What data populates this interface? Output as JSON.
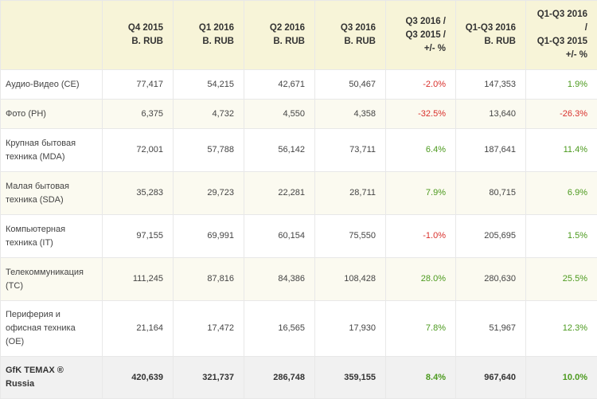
{
  "table": {
    "header": [
      [],
      [
        "Q4 2015",
        "B. RUB"
      ],
      [
        "Q1 2016",
        "B. RUB"
      ],
      [
        "Q2 2016",
        "B. RUB"
      ],
      [
        "Q3 2016",
        "B. RUB"
      ],
      [
        "Q3 2016 /",
        "Q3 2015 /",
        "+/- %"
      ],
      [
        "Q1-Q3 2016",
        "B. RUB"
      ],
      [
        "Q1-Q3 2016",
        "/",
        "Q1-Q3 2015",
        "+/- %"
      ]
    ],
    "rows": [
      [
        [
          "Аудио-Видео (CE)"
        ],
        "77,417",
        "54,215",
        "42,671",
        "50,467",
        "-2.0%",
        "147,353",
        "1.9%"
      ],
      [
        [
          "Фото (PH)"
        ],
        "6,375",
        "4,732",
        "4,550",
        "4,358",
        "-32.5%",
        "13,640",
        "-26.3%"
      ],
      [
        [
          "Крупная бытовая",
          "техника (MDA)"
        ],
        "72,001",
        "57,788",
        "56,142",
        "73,711",
        "6.4%",
        "187,641",
        "11.4%"
      ],
      [
        [
          "Малая бытовая",
          "техника (SDA)"
        ],
        "35,283",
        "29,723",
        "22,281",
        "28,711",
        "7.9%",
        "80,715",
        "6.9%"
      ],
      [
        [
          "Компьютерная",
          "техника (IT)"
        ],
        "97,155",
        "69,991",
        "60,154",
        "75,550",
        "-1.0%",
        "205,695",
        "1.5%"
      ],
      [
        [
          "Телекоммуникация",
          "(TC)"
        ],
        "111,245",
        "87,816",
        "84,386",
        "108,428",
        "28.0%",
        "280,630",
        "25.5%"
      ],
      [
        [
          "Периферия и",
          "офисная техника",
          "(OE)"
        ],
        "21,164",
        "17,472",
        "16,565",
        "17,930",
        "7.8%",
        "51,967",
        "12.3%"
      ]
    ],
    "total": [
      [
        "GfK TEMAX ®",
        "Russia"
      ],
      "420,639",
      "321,737",
      "286,748",
      "359,155",
      "8.4%",
      "967,640",
      "10.0%"
    ]
  }
}
